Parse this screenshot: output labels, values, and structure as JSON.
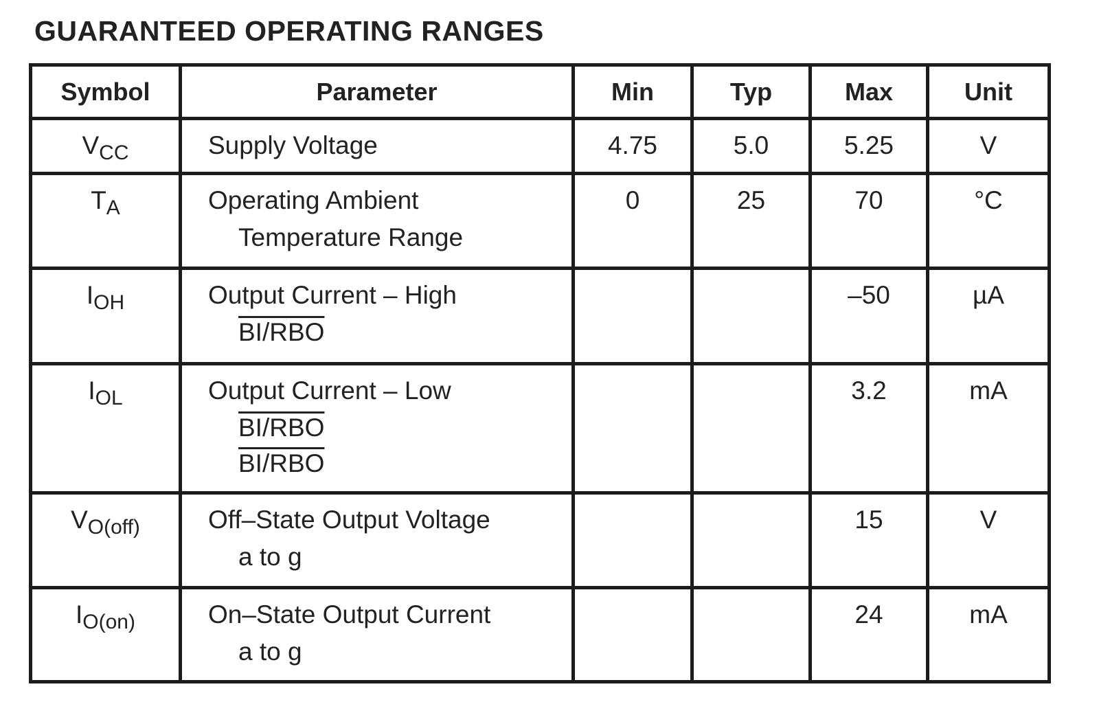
{
  "title": "GUARANTEED OPERATING RANGES",
  "table": {
    "headers": [
      "Symbol",
      "Parameter",
      "Min",
      "Typ",
      "Max",
      "Unit"
    ],
    "rows": [
      {
        "symbol": {
          "main": "V",
          "sub": "CC"
        },
        "parameter": [
          {
            "text": "Supply Voltage"
          }
        ],
        "min": "4.75",
        "typ": "5.0",
        "max": "5.25",
        "unit": "V"
      },
      {
        "symbol": {
          "main": "T",
          "sub": "A"
        },
        "parameter": [
          {
            "text": "Operating Ambient"
          },
          {
            "text": "Temperature Range"
          }
        ],
        "min": "0",
        "typ": "25",
        "max": "70",
        "unit": "°C"
      },
      {
        "symbol": {
          "main": "I",
          "sub": "OH"
        },
        "parameter": [
          {
            "text": "Output Current – High"
          },
          {
            "text": "BI/RBO",
            "overline": true
          }
        ],
        "min": null,
        "typ": null,
        "max": "–50",
        "unit": "µA"
      },
      {
        "symbol": {
          "main": "I",
          "sub": "OL"
        },
        "parameter": [
          {
            "text": "Output Current – Low"
          },
          {
            "text": "BI/RBO",
            "overline": true
          },
          {
            "text": "BI/RBO",
            "overline": true
          }
        ],
        "min": null,
        "typ": null,
        "max": "3.2",
        "unit": "mA"
      },
      {
        "symbol": {
          "main": "V",
          "sub": "O(off)"
        },
        "parameter": [
          {
            "text": "Off–State Output Voltage"
          },
          {
            "text": "a to g"
          }
        ],
        "min": null,
        "typ": null,
        "max": "15",
        "unit": "V"
      },
      {
        "symbol": {
          "main": "I",
          "sub": "O(on)"
        },
        "parameter": [
          {
            "text": "On–State Output Current"
          },
          {
            "text": "a to g"
          }
        ],
        "min": null,
        "typ": null,
        "max": "24",
        "unit": "mA"
      }
    ]
  }
}
